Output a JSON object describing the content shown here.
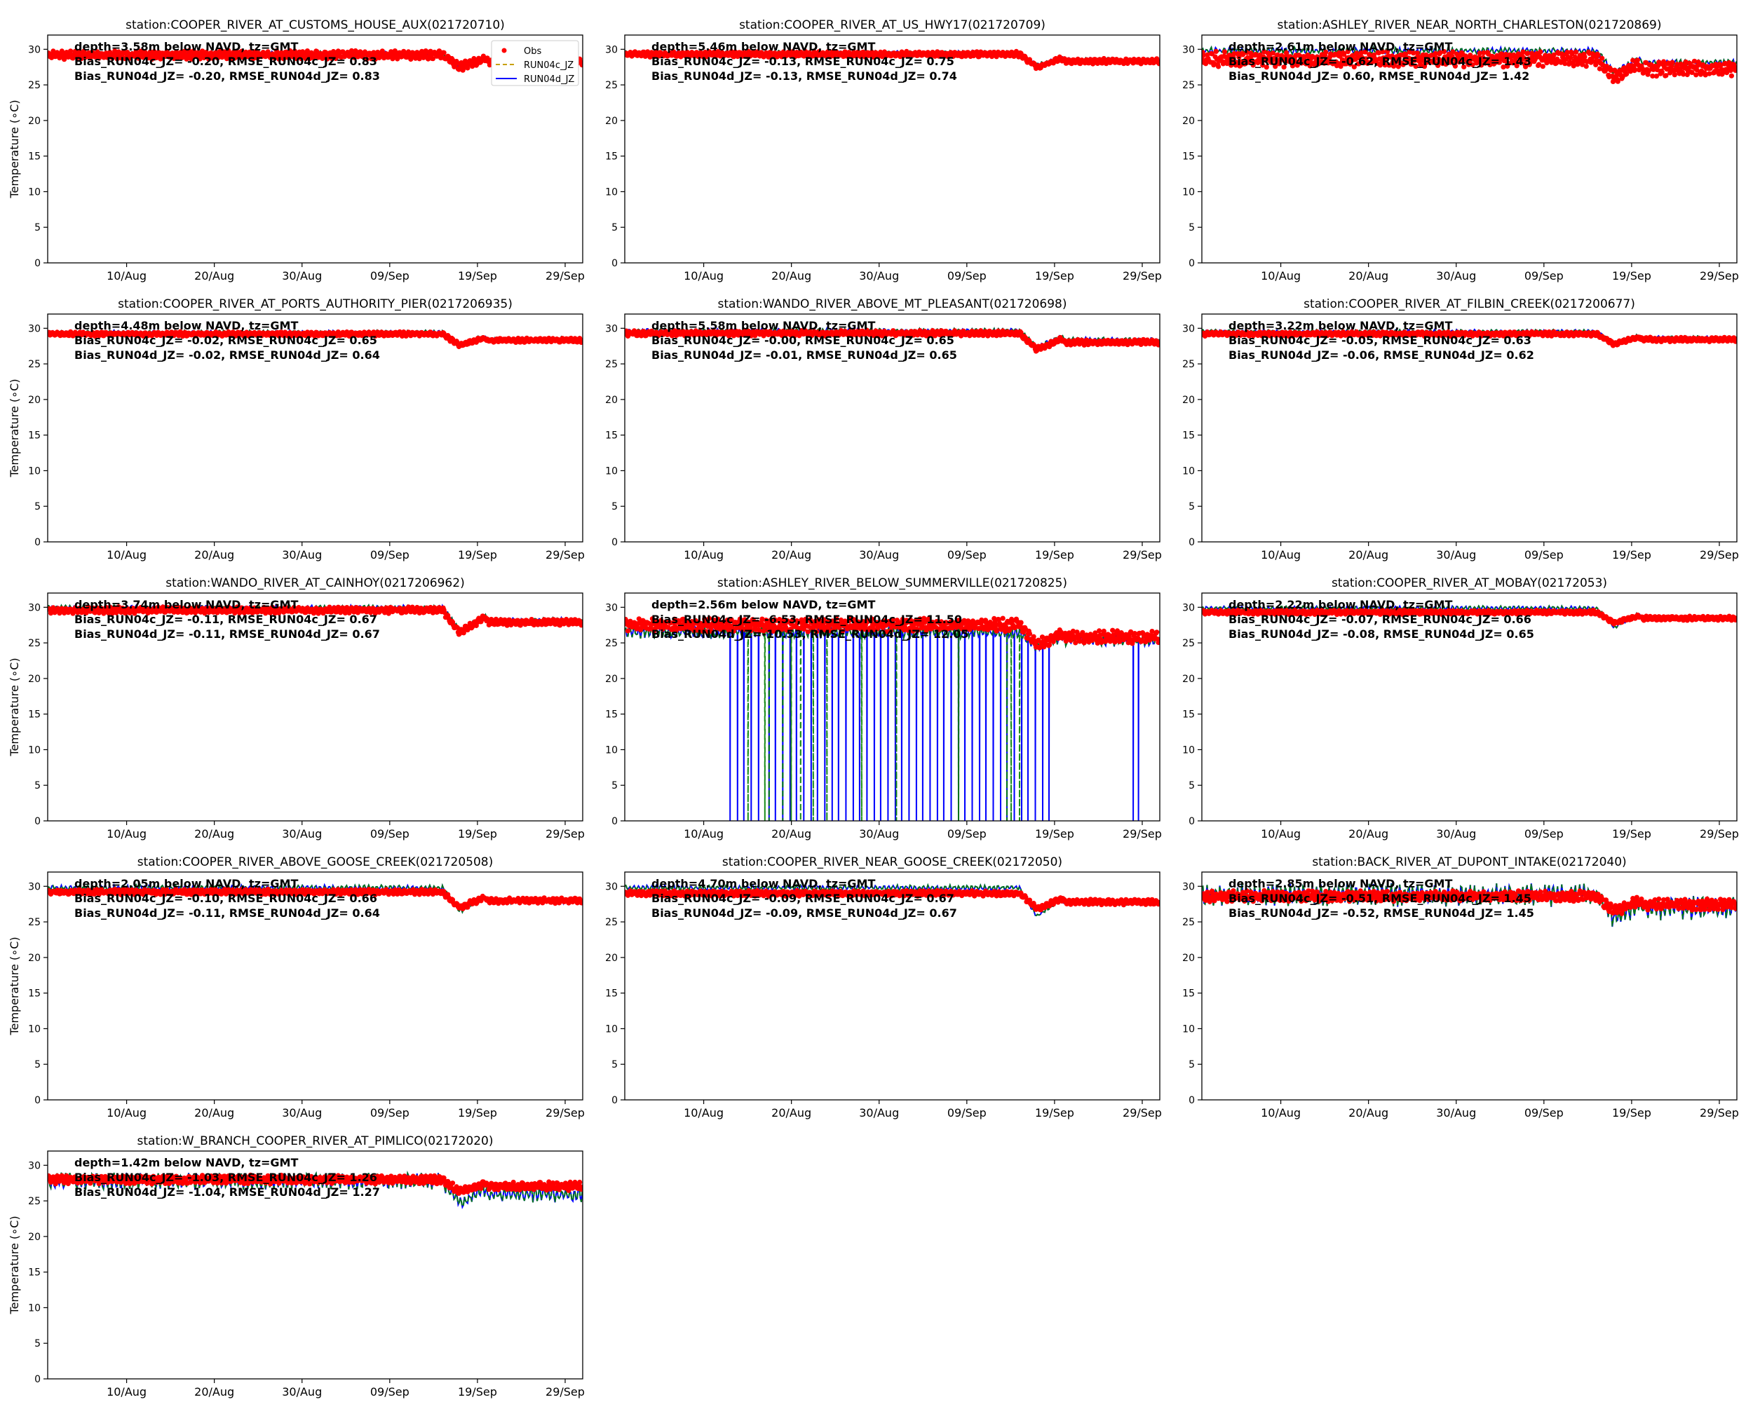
{
  "figure": {
    "ylabel": "Temperature ($^\\circ$C)",
    "ylabel_display": "Temperature (∘C)",
    "legend": [
      "Obs",
      "RUN04c_JZ",
      "RUN04d_JZ"
    ]
  },
  "colors": {
    "obs": "#ff0000",
    "run04c": "#008000",
    "run04d": "#0000ff",
    "legend_mid": "#c8a000"
  },
  "chart_data": [
    {
      "type": "line",
      "title": "station:COOPER_RIVER_AT_CUSTOMS_HOUSE_AUX(021720710)",
      "ylim": [
        0,
        32
      ],
      "yticks": [
        0,
        5,
        10,
        15,
        20,
        25,
        30
      ],
      "xticklabels": [
        "10/Aug",
        "20/Aug",
        "30/Aug",
        "09/Sep",
        "19/Sep",
        "29/Sep"
      ],
      "legend": "upper right",
      "annotations": [
        "depth=3.58m below NAVD, tz=GMT",
        "Bias_RUN04c_JZ= -0.20, RMSE_RUN04c_JZ=  0.83",
        "Bias_RUN04d_JZ= -0.20, RMSE_RUN04d_JZ=  0.83"
      ],
      "series": [
        {
          "name": "Obs",
          "base": 29.2,
          "dip": [
            13,
            16,
            27.5
          ],
          "noise": 0.8,
          "spikes": []
        },
        {
          "name": "RUN04c_JZ",
          "base": 29.5,
          "dip": [
            13,
            16,
            27.5
          ],
          "noise": 0.3
        },
        {
          "name": "RUN04d_JZ",
          "base": 29.5,
          "dip": [
            13,
            16,
            27.5
          ],
          "noise": 0.3
        }
      ]
    },
    {
      "type": "line",
      "title": "station:COOPER_RIVER_AT_US_HWY17(021720709)",
      "ylim": [
        0,
        32
      ],
      "yticks": [
        0,
        5,
        10,
        15,
        20,
        25,
        30
      ],
      "xticklabels": [
        "10/Aug",
        "20/Aug",
        "30/Aug",
        "09/Sep",
        "19/Sep",
        "29/Sep"
      ],
      "annotations": [
        "depth=5.46m below NAVD, tz=GMT",
        "Bias_RUN04c_JZ= -0.13, RMSE_RUN04c_JZ=  0.75",
        "Bias_RUN04d_JZ= -0.13, RMSE_RUN04d_JZ=  0.74"
      ],
      "series": [
        {
          "name": "Obs",
          "base": 29.3,
          "dip": [
            13,
            16,
            27.5
          ],
          "noise": 0.5
        },
        {
          "name": "RUN04c_JZ",
          "base": 29.6,
          "dip": [
            13,
            16,
            27.8
          ],
          "noise": 0.3
        },
        {
          "name": "RUN04d_JZ",
          "base": 29.6,
          "dip": [
            13,
            16,
            27.8
          ],
          "noise": 0.3
        }
      ]
    },
    {
      "type": "line",
      "title": "station:ASHLEY_RIVER_NEAR_NORTH_CHARLESTON(021720869)",
      "ylim": [
        0,
        32
      ],
      "yticks": [
        0,
        5,
        10,
        15,
        20,
        25,
        30
      ],
      "xticklabels": [
        "10/Aug",
        "20/Aug",
        "30/Aug",
        "09/Sep",
        "19/Sep",
        "29/Sep"
      ],
      "annotations": [
        "depth=2.61m below NAVD, tz=GMT",
        "Bias_RUN04c_JZ= -0.62, RMSE_RUN04c_JZ=  1.43",
        "Bias_RUN04d_JZ=  0.60, RMSE_RUN04d_JZ=  1.42"
      ],
      "series": [
        {
          "name": "Obs",
          "base": 28.6,
          "dip": [
            13,
            16,
            26.2
          ],
          "noise": 1.4
        },
        {
          "name": "RUN04c_JZ",
          "base": 29.8,
          "dip": [
            13,
            16,
            26.8
          ],
          "noise": 0.6
        },
        {
          "name": "RUN04d_JZ",
          "base": 29.8,
          "dip": [
            13,
            16,
            26.8
          ],
          "noise": 0.6
        }
      ]
    },
    {
      "type": "line",
      "title": "station:COOPER_RIVER_AT_PORTS_AUTHORITY_PIER(0217206935)",
      "ylim": [
        0,
        32
      ],
      "yticks": [
        0,
        5,
        10,
        15,
        20,
        25,
        30
      ],
      "xticklabels": [
        "10/Aug",
        "20/Aug",
        "30/Aug",
        "09/Sep",
        "19/Sep",
        "29/Sep"
      ],
      "annotations": [
        "depth=4.48m below NAVD, tz=GMT",
        "Bias_RUN04c_JZ= -0.02, RMSE_RUN04c_JZ=  0.65",
        "Bias_RUN04d_JZ= -0.02, RMSE_RUN04d_JZ=  0.64"
      ],
      "series": [
        {
          "name": "Obs",
          "base": 29.2,
          "dip": [
            13,
            16,
            27.6
          ],
          "noise": 0.4
        },
        {
          "name": "RUN04c_JZ",
          "base": 29.5,
          "dip": [
            13,
            16,
            27.8
          ],
          "noise": 0.3
        },
        {
          "name": "RUN04d_JZ",
          "base": 29.5,
          "dip": [
            13,
            16,
            27.8
          ],
          "noise": 0.3
        }
      ]
    },
    {
      "type": "line",
      "title": "station:WANDO_RIVER_ABOVE_MT_PLEASANT(021720698)",
      "ylim": [
        0,
        32
      ],
      "yticks": [
        0,
        5,
        10,
        15,
        20,
        25,
        30
      ],
      "xticklabels": [
        "10/Aug",
        "20/Aug",
        "30/Aug",
        "09/Sep",
        "19/Sep",
        "29/Sep"
      ],
      "annotations": [
        "depth=5.58m below NAVD, tz=GMT",
        "Bias_RUN04c_JZ= -0.00, RMSE_RUN04c_JZ=  0.65",
        "Bias_RUN04d_JZ= -0.01, RMSE_RUN04d_JZ=  0.65"
      ],
      "series": [
        {
          "name": "Obs",
          "base": 29.3,
          "dip": [
            13,
            16,
            27.0
          ],
          "noise": 0.5
        },
        {
          "name": "RUN04c_JZ",
          "base": 29.7,
          "dip": [
            13,
            16,
            27.4
          ],
          "noise": 0.4
        },
        {
          "name": "RUN04d_JZ",
          "base": 29.7,
          "dip": [
            13,
            16,
            27.4
          ],
          "noise": 0.4
        }
      ]
    },
    {
      "type": "line",
      "title": "station:COOPER_RIVER_AT_FILBIN_CREEK(0217200677)",
      "ylim": [
        0,
        32
      ],
      "yticks": [
        0,
        5,
        10,
        15,
        20,
        25,
        30
      ],
      "xticklabels": [
        "10/Aug",
        "20/Aug",
        "30/Aug",
        "09/Sep",
        "19/Sep",
        "29/Sep"
      ],
      "annotations": [
        "depth=3.22m below NAVD, tz=GMT",
        "Bias_RUN04c_JZ= -0.05, RMSE_RUN04c_JZ=  0.63",
        "Bias_RUN04d_JZ= -0.06, RMSE_RUN04d_JZ=  0.62"
      ],
      "series": [
        {
          "name": "Obs",
          "base": 29.2,
          "dip": [
            13,
            16,
            27.8
          ],
          "noise": 0.4
        },
        {
          "name": "RUN04c_JZ",
          "base": 29.6,
          "dip": [
            13,
            16,
            28.0
          ],
          "noise": 0.3
        },
        {
          "name": "RUN04d_JZ",
          "base": 29.6,
          "dip": [
            13,
            16,
            28.0
          ],
          "noise": 0.3
        }
      ]
    },
    {
      "type": "line",
      "title": "station:WANDO_RIVER_AT_CAINHOY(0217206962)",
      "ylim": [
        0,
        32
      ],
      "yticks": [
        0,
        5,
        10,
        15,
        20,
        25,
        30
      ],
      "xticklabels": [
        "10/Aug",
        "20/Aug",
        "30/Aug",
        "09/Sep",
        "19/Sep",
        "29/Sep"
      ],
      "annotations": [
        "depth=3.74m below NAVD, tz=GMT",
        "Bias_RUN04c_JZ= -0.11, RMSE_RUN04c_JZ=  0.67",
        "Bias_RUN04d_JZ= -0.11, RMSE_RUN04d_JZ=  0.67"
      ],
      "series": [
        {
          "name": "Obs",
          "base": 29.6,
          "dip": [
            13,
            16,
            26.5
          ],
          "noise": 0.6
        },
        {
          "name": "RUN04c_JZ",
          "base": 30.0,
          "dip": [
            13,
            16,
            26.8
          ],
          "noise": 0.4
        },
        {
          "name": "RUN04d_JZ",
          "base": 30.0,
          "dip": [
            13,
            16,
            26.8
          ],
          "noise": 0.4
        }
      ]
    },
    {
      "type": "line",
      "title": "station:ASHLEY_RIVER_BELOW_SUMMERVILLE(021720825)",
      "ylim": [
        0,
        32
      ],
      "yticks": [
        0,
        5,
        10,
        15,
        20,
        25,
        30
      ],
      "xticklabels": [
        "10/Aug",
        "20/Aug",
        "30/Aug",
        "09/Sep",
        "19/Sep",
        "29/Sep"
      ],
      "annotations": [
        "depth=2.56m below NAVD, tz=GMT",
        "Bias_RUN04c_JZ= -6.53, RMSE_RUN04c_JZ= 11.50",
        "Bias_RUN04d_JZ=-10.53, RMSE_RUN04d_JZ= 12.05"
      ],
      "series": [
        {
          "name": "Obs",
          "base": 27.5,
          "dip": [
            13,
            16,
            24.5
          ],
          "noise": 1.2
        },
        {
          "name": "RUN04c_JZ",
          "base": 26.5,
          "dip": [
            13,
            16,
            24.5
          ],
          "noise": 1.2,
          "drops": [
            14,
            16,
            16.4,
            18,
            19,
            20,
            21.5,
            23,
            27,
            31,
            38,
            43.5,
            44,
            45
          ]
        },
        {
          "name": "RUN04d_JZ",
          "base": 26.5,
          "dip": [
            13,
            16,
            24.5
          ],
          "noise": 1.2,
          "drops": [
            12,
            12.8,
            13.6,
            14.4,
            15.2,
            16.4,
            17.2,
            18,
            18.8,
            19.6,
            20.4,
            21.2,
            22,
            22.8,
            23.6,
            24.4,
            25.2,
            26,
            26.8,
            27.6,
            28.4,
            29.2,
            30,
            30.8,
            31.6,
            32.4,
            33.2,
            34,
            34.8,
            35.6,
            36.4,
            37.2,
            38,
            38.8,
            39.6,
            40.4,
            41.2,
            42,
            42.8,
            43.6,
            44.4,
            45.2,
            46,
            46.8,
            47.6,
            48.4,
            58,
            58.6
          ]
        }
      ]
    },
    {
      "type": "line",
      "title": "station:COOPER_RIVER_AT_MOBAY(02172053)",
      "ylim": [
        0,
        32
      ],
      "yticks": [
        0,
        5,
        10,
        15,
        20,
        25,
        30
      ],
      "xticklabels": [
        "10/Aug",
        "20/Aug",
        "30/Aug",
        "09/Sep",
        "19/Sep",
        "29/Sep"
      ],
      "annotations": [
        "depth=2.22m below NAVD, tz=GMT",
        "Bias_RUN04c_JZ= -0.07, RMSE_RUN04c_JZ=  0.66",
        "Bias_RUN04d_JZ= -0.08, RMSE_RUN04d_JZ=  0.65"
      ],
      "series": [
        {
          "name": "Obs",
          "base": 29.3,
          "dip": [
            13,
            16,
            27.8
          ],
          "noise": 0.4
        },
        {
          "name": "RUN04c_JZ",
          "base": 29.9,
          "dip": [
            13,
            16,
            27.2
          ],
          "noise": 0.4
        },
        {
          "name": "RUN04d_JZ",
          "base": 29.9,
          "dip": [
            13,
            16,
            27.2
          ],
          "noise": 0.4
        }
      ]
    },
    {
      "type": "line",
      "title": "station:COOPER_RIVER_ABOVE_GOOSE_CREEK(021720508)",
      "ylim": [
        0,
        32
      ],
      "yticks": [
        0,
        5,
        10,
        15,
        20,
        25,
        30
      ],
      "xticklabels": [
        "10/Aug",
        "20/Aug",
        "30/Aug",
        "09/Sep",
        "19/Sep",
        "29/Sep"
      ],
      "annotations": [
        "depth=2.05m below NAVD, tz=GMT",
        "Bias_RUN04c_JZ= -0.10, RMSE_RUN04c_JZ=  0.66",
        "Bias_RUN04d_JZ= -0.11, RMSE_RUN04d_JZ=  0.64"
      ],
      "series": [
        {
          "name": "Obs",
          "base": 29.2,
          "dip": [
            13,
            16,
            27.0
          ],
          "noise": 0.5
        },
        {
          "name": "RUN04c_JZ",
          "base": 29.8,
          "dip": [
            13,
            16,
            26.5
          ],
          "noise": 0.5
        },
        {
          "name": "RUN04d_JZ",
          "base": 29.8,
          "dip": [
            13,
            16,
            26.5
          ],
          "noise": 0.5
        }
      ]
    },
    {
      "type": "line",
      "title": "station:COOPER_RIVER_NEAR_GOOSE_CREEK(02172050)",
      "ylim": [
        0,
        32
      ],
      "yticks": [
        0,
        5,
        10,
        15,
        20,
        25,
        30
      ],
      "xticklabels": [
        "10/Aug",
        "20/Aug",
        "30/Aug",
        "09/Sep",
        "19/Sep",
        "29/Sep"
      ],
      "annotations": [
        "depth=4.70m below NAVD, tz=GMT",
        "Bias_RUN04c_JZ= -0.09, RMSE_RUN04c_JZ=  0.67",
        "Bias_RUN04d_JZ= -0.09, RMSE_RUN04d_JZ=  0.67"
      ],
      "series": [
        {
          "name": "Obs",
          "base": 29.0,
          "dip": [
            13,
            16,
            26.8
          ],
          "noise": 0.5
        },
        {
          "name": "RUN04c_JZ",
          "base": 29.8,
          "dip": [
            13,
            16,
            25.8
          ],
          "noise": 0.5
        },
        {
          "name": "RUN04d_JZ",
          "base": 29.8,
          "dip": [
            13,
            16,
            25.8
          ],
          "noise": 0.5
        }
      ]
    },
    {
      "type": "line",
      "title": "station:BACK_RIVER_AT_DUPONT_INTAKE(02172040)",
      "ylim": [
        0,
        32
      ],
      "yticks": [
        0,
        5,
        10,
        15,
        20,
        25,
        30
      ],
      "xticklabels": [
        "10/Aug",
        "20/Aug",
        "30/Aug",
        "09/Sep",
        "19/Sep",
        "29/Sep"
      ],
      "annotations": [
        "depth=2.85m below NAVD, tz=GMT",
        "Bias_RUN04c_JZ= -0.51, RMSE_RUN04c_JZ=  1.45",
        "Bias_RUN04d_JZ= -0.52, RMSE_RUN04d_JZ=  1.45"
      ],
      "series": [
        {
          "name": "Obs",
          "base": 28.6,
          "dip": [
            13,
            16,
            26.5
          ],
          "noise": 1.0
        },
        {
          "name": "RUN04c_JZ",
          "base": 28.8,
          "dip": [
            13,
            16,
            25.5
          ],
          "noise": 2.2
        },
        {
          "name": "RUN04d_JZ",
          "base": 28.8,
          "dip": [
            13,
            16,
            25.5
          ],
          "noise": 2.2
        }
      ]
    },
    {
      "type": "line",
      "title": "station:W_BRANCH_COOPER_RIVER_AT_PIMLICO(02172020)",
      "ylim": [
        0,
        32
      ],
      "yticks": [
        0,
        5,
        10,
        15,
        20,
        25,
        30
      ],
      "xticklabels": [
        "10/Aug",
        "20/Aug",
        "30/Aug",
        "09/Sep",
        "19/Sep",
        "29/Sep"
      ],
      "annotations": [
        "depth=1.42m below NAVD, tz=GMT",
        "Bias_RUN04c_JZ= -1.03, RMSE_RUN04c_JZ=  1.26",
        "Bias_RUN04d_JZ= -1.04, RMSE_RUN04d_JZ=  1.27"
      ],
      "series": [
        {
          "name": "Obs",
          "base": 28.0,
          "dip": [
            13,
            16,
            26.3
          ],
          "noise": 0.8
        },
        {
          "name": "RUN04c_JZ",
          "base": 27.8,
          "dip": [
            13,
            16,
            24.5
          ],
          "noise": 1.6
        },
        {
          "name": "RUN04d_JZ",
          "base": 27.8,
          "dip": [
            13,
            16,
            24.5
          ],
          "noise": 1.6
        }
      ]
    }
  ]
}
